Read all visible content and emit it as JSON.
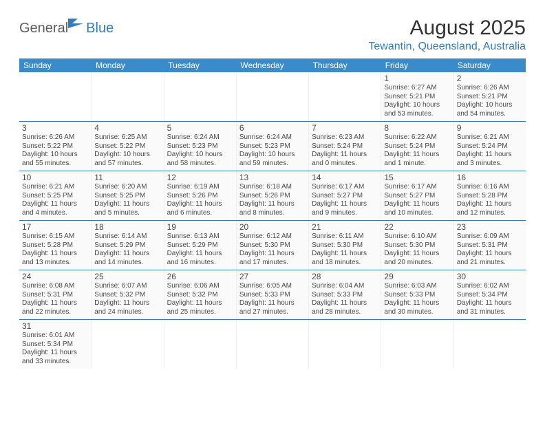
{
  "logo": {
    "part1": "General",
    "part2": "Blue"
  },
  "title": "August 2025",
  "location": "Tewantin, Queensland, Australia",
  "colors": {
    "headerBar": "#3a8bc9",
    "accent": "#2d7dbf",
    "text": "#4a4a4a",
    "cellBg": "#fafafa"
  },
  "weekdays": [
    "Sunday",
    "Monday",
    "Tuesday",
    "Wednesday",
    "Thursday",
    "Friday",
    "Saturday"
  ],
  "weeks": [
    [
      null,
      null,
      null,
      null,
      null,
      {
        "n": "1",
        "sr": "Sunrise: 6:27 AM",
        "ss": "Sunset: 5:21 PM",
        "d1": "Daylight: 10 hours",
        "d2": "and 53 minutes."
      },
      {
        "n": "2",
        "sr": "Sunrise: 6:26 AM",
        "ss": "Sunset: 5:21 PM",
        "d1": "Daylight: 10 hours",
        "d2": "and 54 minutes."
      }
    ],
    [
      {
        "n": "3",
        "sr": "Sunrise: 6:26 AM",
        "ss": "Sunset: 5:22 PM",
        "d1": "Daylight: 10 hours",
        "d2": "and 55 minutes."
      },
      {
        "n": "4",
        "sr": "Sunrise: 6:25 AM",
        "ss": "Sunset: 5:22 PM",
        "d1": "Daylight: 10 hours",
        "d2": "and 57 minutes."
      },
      {
        "n": "5",
        "sr": "Sunrise: 6:24 AM",
        "ss": "Sunset: 5:23 PM",
        "d1": "Daylight: 10 hours",
        "d2": "and 58 minutes."
      },
      {
        "n": "6",
        "sr": "Sunrise: 6:24 AM",
        "ss": "Sunset: 5:23 PM",
        "d1": "Daylight: 10 hours",
        "d2": "and 59 minutes."
      },
      {
        "n": "7",
        "sr": "Sunrise: 6:23 AM",
        "ss": "Sunset: 5:24 PM",
        "d1": "Daylight: 11 hours",
        "d2": "and 0 minutes."
      },
      {
        "n": "8",
        "sr": "Sunrise: 6:22 AM",
        "ss": "Sunset: 5:24 PM",
        "d1": "Daylight: 11 hours",
        "d2": "and 1 minute."
      },
      {
        "n": "9",
        "sr": "Sunrise: 6:21 AM",
        "ss": "Sunset: 5:24 PM",
        "d1": "Daylight: 11 hours",
        "d2": "and 3 minutes."
      }
    ],
    [
      {
        "n": "10",
        "sr": "Sunrise: 6:21 AM",
        "ss": "Sunset: 5:25 PM",
        "d1": "Daylight: 11 hours",
        "d2": "and 4 minutes."
      },
      {
        "n": "11",
        "sr": "Sunrise: 6:20 AM",
        "ss": "Sunset: 5:25 PM",
        "d1": "Daylight: 11 hours",
        "d2": "and 5 minutes."
      },
      {
        "n": "12",
        "sr": "Sunrise: 6:19 AM",
        "ss": "Sunset: 5:26 PM",
        "d1": "Daylight: 11 hours",
        "d2": "and 6 minutes."
      },
      {
        "n": "13",
        "sr": "Sunrise: 6:18 AM",
        "ss": "Sunset: 5:26 PM",
        "d1": "Daylight: 11 hours",
        "d2": "and 8 minutes."
      },
      {
        "n": "14",
        "sr": "Sunrise: 6:17 AM",
        "ss": "Sunset: 5:27 PM",
        "d1": "Daylight: 11 hours",
        "d2": "and 9 minutes."
      },
      {
        "n": "15",
        "sr": "Sunrise: 6:17 AM",
        "ss": "Sunset: 5:27 PM",
        "d1": "Daylight: 11 hours",
        "d2": "and 10 minutes."
      },
      {
        "n": "16",
        "sr": "Sunrise: 6:16 AM",
        "ss": "Sunset: 5:28 PM",
        "d1": "Daylight: 11 hours",
        "d2": "and 12 minutes."
      }
    ],
    [
      {
        "n": "17",
        "sr": "Sunrise: 6:15 AM",
        "ss": "Sunset: 5:28 PM",
        "d1": "Daylight: 11 hours",
        "d2": "and 13 minutes."
      },
      {
        "n": "18",
        "sr": "Sunrise: 6:14 AM",
        "ss": "Sunset: 5:29 PM",
        "d1": "Daylight: 11 hours",
        "d2": "and 14 minutes."
      },
      {
        "n": "19",
        "sr": "Sunrise: 6:13 AM",
        "ss": "Sunset: 5:29 PM",
        "d1": "Daylight: 11 hours",
        "d2": "and 16 minutes."
      },
      {
        "n": "20",
        "sr": "Sunrise: 6:12 AM",
        "ss": "Sunset: 5:30 PM",
        "d1": "Daylight: 11 hours",
        "d2": "and 17 minutes."
      },
      {
        "n": "21",
        "sr": "Sunrise: 6:11 AM",
        "ss": "Sunset: 5:30 PM",
        "d1": "Daylight: 11 hours",
        "d2": "and 18 minutes."
      },
      {
        "n": "22",
        "sr": "Sunrise: 6:10 AM",
        "ss": "Sunset: 5:30 PM",
        "d1": "Daylight: 11 hours",
        "d2": "and 20 minutes."
      },
      {
        "n": "23",
        "sr": "Sunrise: 6:09 AM",
        "ss": "Sunset: 5:31 PM",
        "d1": "Daylight: 11 hours",
        "d2": "and 21 minutes."
      }
    ],
    [
      {
        "n": "24",
        "sr": "Sunrise: 6:08 AM",
        "ss": "Sunset: 5:31 PM",
        "d1": "Daylight: 11 hours",
        "d2": "and 22 minutes."
      },
      {
        "n": "25",
        "sr": "Sunrise: 6:07 AM",
        "ss": "Sunset: 5:32 PM",
        "d1": "Daylight: 11 hours",
        "d2": "and 24 minutes."
      },
      {
        "n": "26",
        "sr": "Sunrise: 6:06 AM",
        "ss": "Sunset: 5:32 PM",
        "d1": "Daylight: 11 hours",
        "d2": "and 25 minutes."
      },
      {
        "n": "27",
        "sr": "Sunrise: 6:05 AM",
        "ss": "Sunset: 5:33 PM",
        "d1": "Daylight: 11 hours",
        "d2": "and 27 minutes."
      },
      {
        "n": "28",
        "sr": "Sunrise: 6:04 AM",
        "ss": "Sunset: 5:33 PM",
        "d1": "Daylight: 11 hours",
        "d2": "and 28 minutes."
      },
      {
        "n": "29",
        "sr": "Sunrise: 6:03 AM",
        "ss": "Sunset: 5:33 PM",
        "d1": "Daylight: 11 hours",
        "d2": "and 30 minutes."
      },
      {
        "n": "30",
        "sr": "Sunrise: 6:02 AM",
        "ss": "Sunset: 5:34 PM",
        "d1": "Daylight: 11 hours",
        "d2": "and 31 minutes."
      }
    ],
    [
      {
        "n": "31",
        "sr": "Sunrise: 6:01 AM",
        "ss": "Sunset: 5:34 PM",
        "d1": "Daylight: 11 hours",
        "d2": "and 33 minutes."
      },
      null,
      null,
      null,
      null,
      null,
      null
    ]
  ]
}
